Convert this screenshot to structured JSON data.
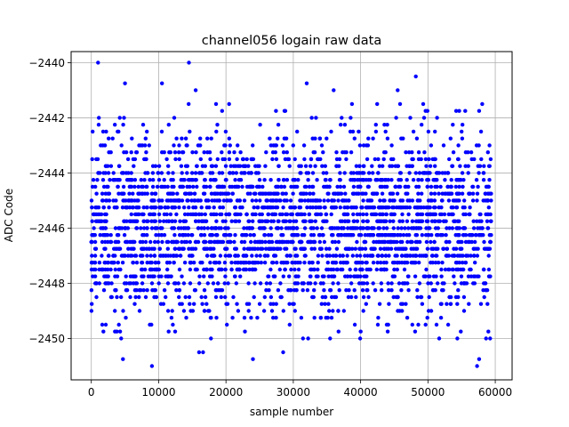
{
  "chart_data": {
    "type": "scatter",
    "title": "channel056 logain raw data",
    "xlabel": "sample number",
    "ylabel": "ADC Code",
    "xlim": [
      -3000,
      62500
    ],
    "ylim": [
      -2451.5,
      -2439.6
    ],
    "x_ticks": [
      0,
      10000,
      20000,
      30000,
      40000,
      50000,
      60000
    ],
    "x_tick_labels": [
      "0",
      "10000",
      "20000",
      "30000",
      "40000",
      "50000",
      "60000"
    ],
    "y_ticks": [
      -2450,
      -2448,
      -2446,
      -2444,
      -2442,
      -2440
    ],
    "y_tick_labels": [
      "−2450",
      "−2448",
      "−2446",
      "−2444",
      "−2442",
      "−2440"
    ],
    "grid": true,
    "marker_color": "#0000ff",
    "series": [
      {
        "x_range": [
          0,
          59400
        ],
        "y_levels": [
          -2451.0,
          -2450.75,
          -2450.5,
          -2450.25,
          -2450.0,
          -2449.75,
          -2449.5,
          -2449.25,
          -2449.0,
          -2448.75,
          -2448.5,
          -2448.25,
          -2448.0,
          -2447.75,
          -2447.5,
          -2447.25,
          -2447.0,
          -2446.75,
          -2446.5,
          -2446.25,
          -2446.0,
          -2445.75,
          -2445.5,
          -2445.25,
          -2445.0,
          -2444.75,
          -2444.5,
          -2444.25,
          -2444.0,
          -2443.75,
          -2443.5,
          -2443.25,
          -2443.0,
          -2442.75,
          -2442.5,
          -2442.25,
          -2442.0,
          -2441.75,
          -2441.5,
          -2441.25,
          -2441.0,
          -2440.75,
          -2440.5,
          -2440.0
        ],
        "outliers": [
          {
            "x": 1000,
            "y": -2440.0
          },
          {
            "x": 14500,
            "y": -2440.0
          },
          {
            "x": 48200,
            "y": -2440.5
          },
          {
            "x": 5000,
            "y": -2440.75
          },
          {
            "x": 10500,
            "y": -2440.75
          },
          {
            "x": 32000,
            "y": -2440.75
          },
          {
            "x": 15500,
            "y": -2441.0
          },
          {
            "x": 36000,
            "y": -2441.0
          },
          {
            "x": 45500,
            "y": -2441.0
          },
          {
            "x": 4700,
            "y": -2450.75
          },
          {
            "x": 24000,
            "y": -2450.75
          },
          {
            "x": 57600,
            "y": -2450.75
          },
          {
            "x": 9000,
            "y": -2451.0
          },
          {
            "x": 57300,
            "y": -2451.0
          },
          {
            "x": 28500,
            "y": -2450.5
          },
          {
            "x": 16000,
            "y": -2450.5
          },
          {
            "x": 16600,
            "y": -2450.5
          }
        ]
      }
    ]
  }
}
